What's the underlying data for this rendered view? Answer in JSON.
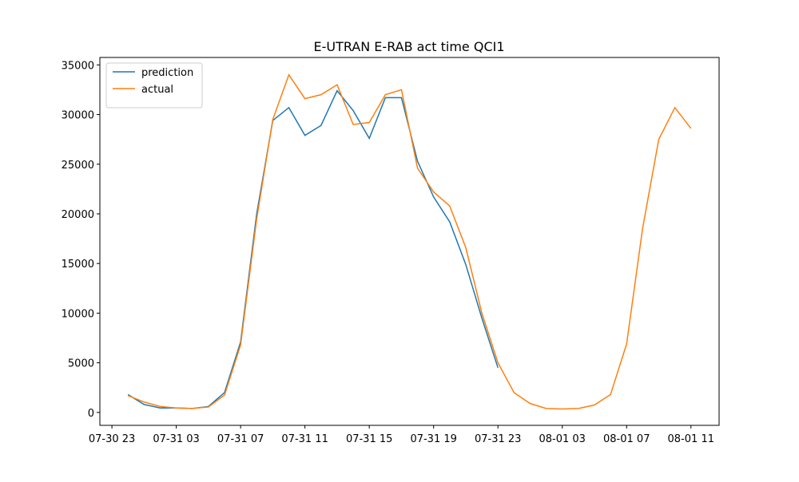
{
  "chart_data": {
    "type": "line",
    "title": "E-UTRAN E-RAB act time QCI1",
    "x": [
      "07-31 00",
      "07-31 01",
      "07-31 02",
      "07-31 03",
      "07-31 04",
      "07-31 05",
      "07-31 06",
      "07-31 07",
      "07-31 08",
      "07-31 09",
      "07-31 10",
      "07-31 11",
      "07-31 12",
      "07-31 13",
      "07-31 14",
      "07-31 15",
      "07-31 16",
      "07-31 17",
      "07-31 18",
      "07-31 19",
      "07-31 20",
      "07-31 21",
      "07-31 22",
      "07-31 23",
      "08-01 00",
      "08-01 01",
      "08-01 02",
      "08-01 03",
      "08-01 04",
      "08-01 05",
      "08-01 06",
      "08-01 07",
      "08-01 08",
      "08-01 09",
      "08-01 10",
      "08-01 11"
    ],
    "series": [
      {
        "name": "prediction",
        "color": "#1f77b4",
        "values": [
          1800,
          800,
          450,
          450,
          400,
          600,
          2000,
          7100,
          20000,
          29400,
          30700,
          27900,
          28900,
          32400,
          30400,
          27600,
          31700,
          31700,
          25300,
          21700,
          19200,
          14900,
          9500,
          4500,
          null,
          null,
          null,
          null,
          null,
          null,
          null,
          null,
          null,
          null,
          null,
          null
        ]
      },
      {
        "name": "actual",
        "color": "#ff7f0e",
        "values": [
          1700,
          1050,
          600,
          450,
          400,
          550,
          1750,
          6800,
          19500,
          29500,
          34000,
          31600,
          32000,
          33000,
          29000,
          29200,
          32000,
          32500,
          24600,
          22200,
          20800,
          16600,
          10000,
          5000,
          2000,
          900,
          400,
          350,
          400,
          750,
          1800,
          6900,
          18600,
          27500,
          30700,
          28600
        ]
      }
    ],
    "xlim": [
      "07-30 22:15",
      "08-01 12:45"
    ],
    "xticks": [
      "07-30 23",
      "07-31 03",
      "07-31 07",
      "07-31 11",
      "07-31 15",
      "07-31 19",
      "07-31 23",
      "08-01 03",
      "08-01 07",
      "08-01 11"
    ],
    "ylim": [
      -1300,
      35750
    ],
    "yticks": [
      0,
      5000,
      10000,
      15000,
      20000,
      25000,
      30000,
      35000
    ],
    "legend": "upper-left"
  }
}
